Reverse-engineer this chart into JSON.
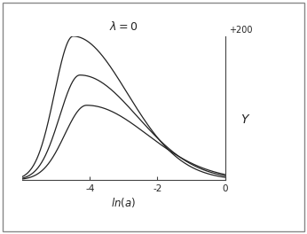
{
  "title": "$\\lambda = 0$",
  "xlabel": "$\\mathit{ln}(a)$",
  "ylabel": "$\\mathit{Y}$",
  "ylabel_annotation": "+200",
  "x_min": -6.0,
  "x_max": 0.0,
  "y_min": 0.0,
  "y_max": 1.0,
  "x_ticks": [
    -4,
    -2,
    0
  ],
  "curves": [
    {
      "scale": 1.0,
      "mu": -4.5,
      "sigma_l": 0.55,
      "sigma_r": 1.6
    },
    {
      "scale": 0.73,
      "mu": -4.3,
      "sigma_l": 0.6,
      "sigma_r": 1.7
    },
    {
      "scale": 0.52,
      "mu": -4.1,
      "sigma_l": 0.65,
      "sigma_r": 1.8
    }
  ],
  "background_color": "#ffffff",
  "line_color": "#222222",
  "border_color": "#aaaaaa"
}
